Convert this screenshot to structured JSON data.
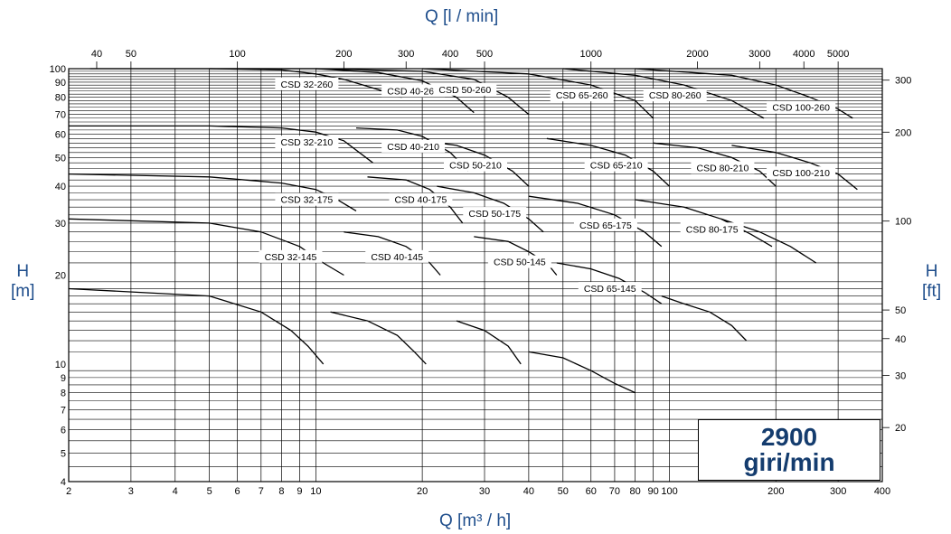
{
  "chart_data": {
    "type": "line",
    "title": "",
    "xlabel": "Q [m³ / h]",
    "x2label": "Q [l / min]",
    "ylabel": "H [m]",
    "y2label": "H [ft]",
    "xscale": "log",
    "yscale": "log",
    "xlim": [
      2,
      400
    ],
    "ylim": [
      4,
      100
    ],
    "grid": true,
    "x_ticks": [
      "2",
      "3",
      "4",
      "5",
      "6",
      "7",
      "8",
      "9",
      "10",
      "20",
      "30",
      "40",
      "50",
      "60",
      "70",
      "80",
      "90",
      "100",
      "200",
      "300",
      "400"
    ],
    "x2_ticks": [
      "40",
      "50",
      "100",
      "200",
      "300",
      "400",
      "500",
      "1000",
      "2000",
      "3000",
      "4000",
      "5000"
    ],
    "y_ticks": [
      "4",
      "5",
      "6",
      "7",
      "8",
      "9",
      "10",
      "20",
      "30",
      "40",
      "50",
      "60",
      "70",
      "80",
      "90",
      "100"
    ],
    "y2_ticks": [
      "20",
      "30",
      "40",
      "50",
      "100",
      "200",
      "300"
    ],
    "annotation": {
      "line1": "2900",
      "line2": "giri/min"
    },
    "series": [
      {
        "name": "CSD 32-260",
        "x": [
          2.3,
          5,
          8,
          10,
          12,
          15,
          17.5
        ],
        "y": [
          100,
          100,
          99,
          96,
          92,
          85,
          80
        ]
      },
      {
        "name": "CSD 32-210",
        "x": [
          2,
          5,
          8,
          10,
          12,
          14.5
        ],
        "y": [
          64,
          64,
          63,
          61,
          57,
          48
        ]
      },
      {
        "name": "CSD 32-175",
        "x": [
          2,
          5,
          8,
          10,
          11.5,
          13
        ],
        "y": [
          44,
          43,
          41,
          39,
          36,
          33
        ]
      },
      {
        "name": "CSD 32-145",
        "x": [
          2,
          5,
          7,
          9,
          10.5,
          12
        ],
        "y": [
          31,
          30,
          28,
          25,
          22,
          20
        ]
      },
      {
        "name": "",
        "x": [
          2,
          5,
          7,
          8.5,
          9.5,
          10.5
        ],
        "y": [
          18,
          17,
          15,
          13,
          11.5,
          10
        ]
      },
      {
        "name": "CSD 40-260",
        "x": [
          5,
          10,
          15,
          20,
          25,
          28
        ],
        "y": [
          100,
          100,
          97,
          91,
          80,
          71
        ]
      },
      {
        "name": "CSD 40-210",
        "x": [
          13,
          17,
          20,
          24,
          27
        ],
        "y": [
          63,
          62,
          59,
          52,
          45
        ]
      },
      {
        "name": "CSD 40-175",
        "x": [
          14,
          18,
          21,
          24,
          26
        ],
        "y": [
          43,
          42,
          39,
          34,
          30
        ]
      },
      {
        "name": "CSD 40-145",
        "x": [
          12,
          15,
          18,
          21,
          22.5
        ],
        "y": [
          28,
          27,
          25,
          22,
          20
        ]
      },
      {
        "name": "",
        "x": [
          11,
          14,
          17,
          19,
          20.5
        ],
        "y": [
          15,
          14,
          12.5,
          11,
          10
        ]
      },
      {
        "name": "CSD 50-260",
        "x": [
          10,
          20,
          28,
          35,
          40
        ],
        "y": [
          100,
          98,
          92,
          80,
          70
        ]
      },
      {
        "name": "CSD 50-210",
        "x": [
          20,
          25,
          30,
          36,
          40
        ],
        "y": [
          57,
          55,
          51,
          45,
          40
        ]
      },
      {
        "name": "CSD 50-175",
        "x": [
          22,
          28,
          34,
          40,
          44
        ],
        "y": [
          40,
          38,
          35,
          31,
          28
        ]
      },
      {
        "name": "CSD 50-145",
        "x": [
          28,
          35,
          40,
          45,
          48
        ],
        "y": [
          27,
          26,
          24,
          22,
          20
        ]
      },
      {
        "name": "",
        "x": [
          25,
          30,
          35,
          38
        ],
        "y": [
          14,
          13,
          11.5,
          10
        ]
      },
      {
        "name": "CSD 65-260",
        "x": [
          20,
          40,
          60,
          80,
          90
        ],
        "y": [
          100,
          96,
          88,
          78,
          68
        ]
      },
      {
        "name": "CSD 65-210",
        "x": [
          45,
          60,
          75,
          90,
          100
        ],
        "y": [
          58,
          55,
          51,
          45,
          40
        ]
      },
      {
        "name": "CSD 65-175",
        "x": [
          40,
          55,
          70,
          85,
          95
        ],
        "y": [
          37,
          35,
          32,
          28,
          25
        ]
      },
      {
        "name": "CSD 65-145",
        "x": [
          48,
          60,
          72,
          85,
          95
        ],
        "y": [
          22,
          21,
          19.5,
          17.5,
          16
        ]
      },
      {
        "name": "",
        "x": [
          40,
          50,
          60,
          70,
          80
        ],
        "y": [
          11,
          10.5,
          9.5,
          8.6,
          8
        ]
      },
      {
        "name": "CSD 80-260",
        "x": [
          50,
          80,
          110,
          150,
          185
        ],
        "y": [
          100,
          95,
          88,
          78,
          68
        ]
      },
      {
        "name": "CSD 80-210",
        "x": [
          90,
          120,
          150,
          180,
          200
        ],
        "y": [
          56,
          54,
          50,
          45,
          40
        ]
      },
      {
        "name": "CSD 80-175",
        "x": [
          80,
          110,
          140,
          170,
          195
        ],
        "y": [
          36,
          34,
          31,
          27.5,
          25
        ]
      },
      {
        "name": "",
        "x": [
          95,
          110,
          130,
          150,
          165
        ],
        "y": [
          17,
          16,
          15,
          13.5,
          12
        ]
      },
      {
        "name": "CSD 100-260",
        "x": [
          80,
          150,
          200,
          250,
          300,
          330
        ],
        "y": [
          100,
          95,
          88,
          80,
          73,
          68
        ]
      },
      {
        "name": "CSD 100-210",
        "x": [
          150,
          200,
          250,
          300,
          340
        ],
        "y": [
          55,
          52,
          48,
          44,
          39
        ]
      },
      {
        "name": "",
        "x": [
          140,
          180,
          220,
          260
        ],
        "y": [
          31,
          28,
          25,
          22
        ]
      }
    ]
  }
}
